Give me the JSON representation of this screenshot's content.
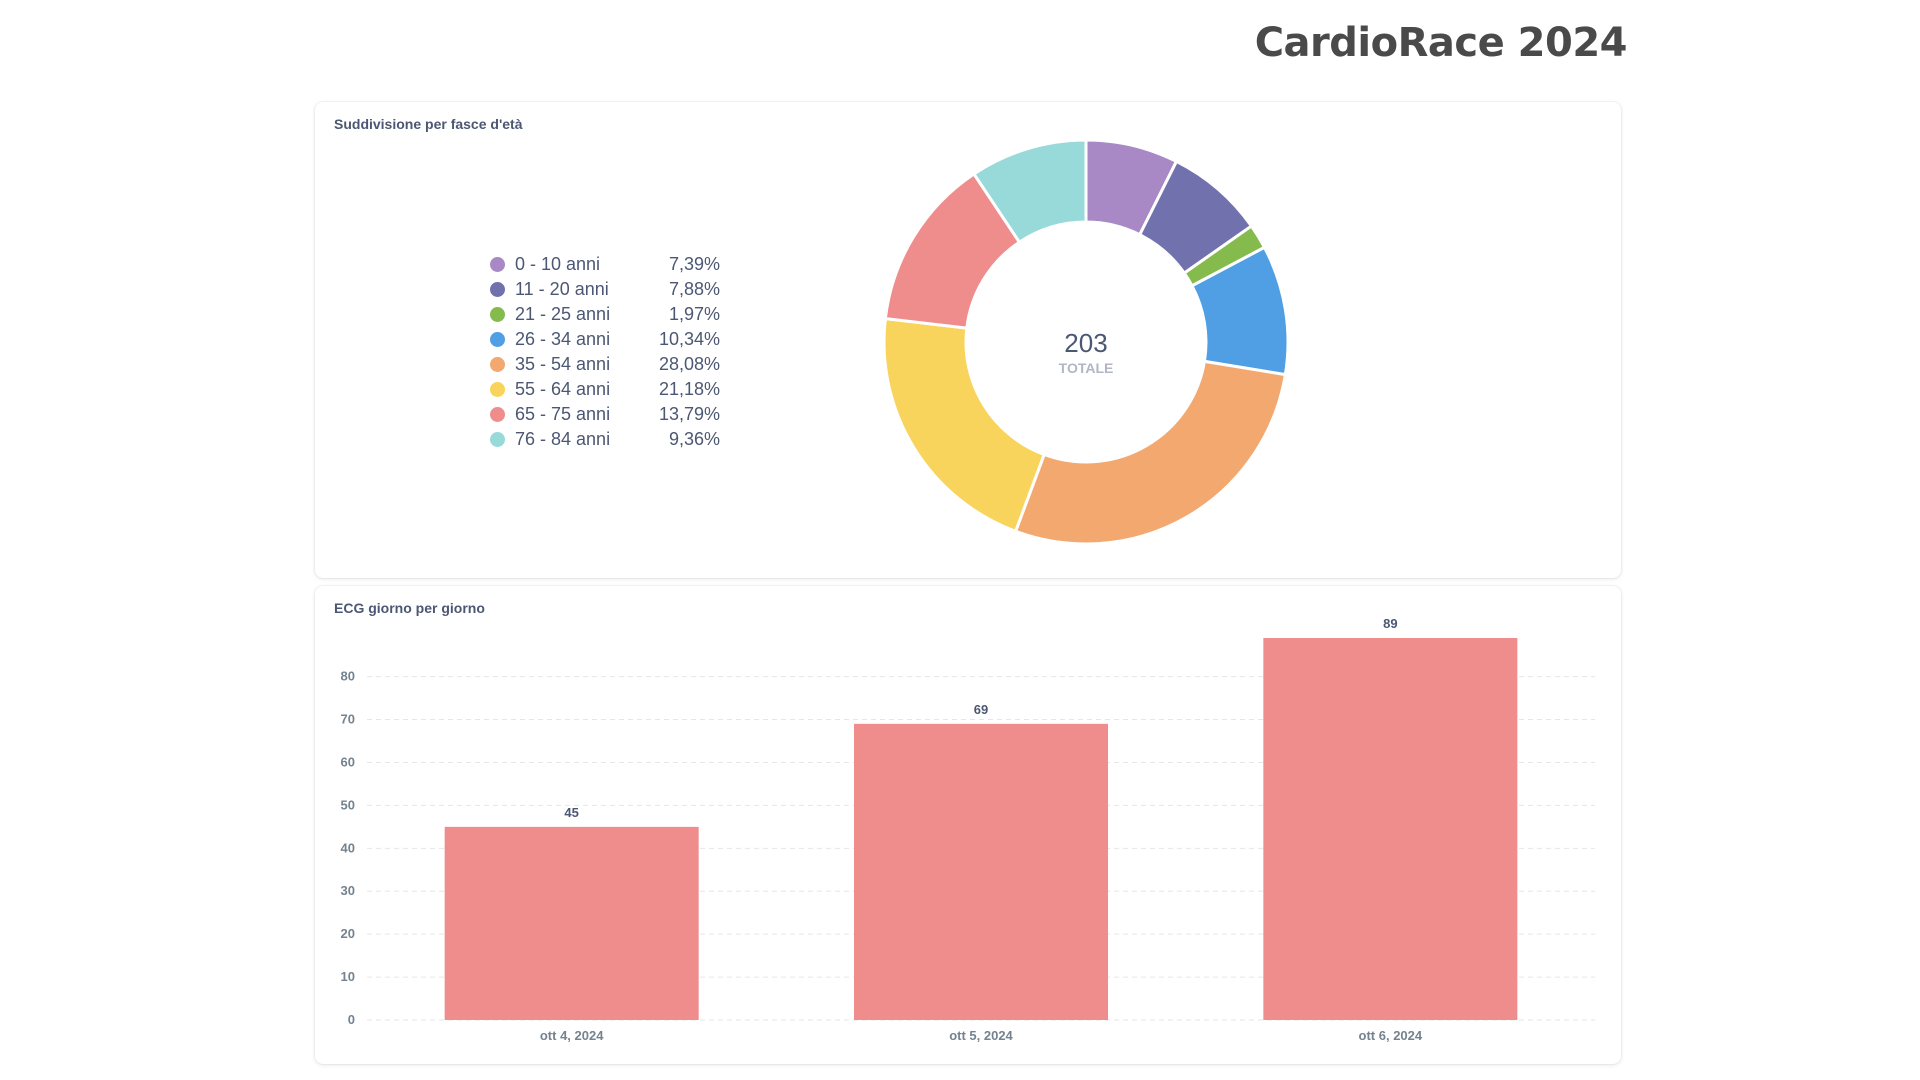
{
  "header": {
    "title": "CardioRace 2024"
  },
  "age_card": {
    "title": "Suddivisione per fasce d'età",
    "center_value": "203",
    "center_label": "TOTALE",
    "legend": [
      {
        "label": "0 - 10 anni",
        "pct": "7,39%",
        "color": "#a989c5"
      },
      {
        "label": "11 - 20 anni",
        "pct": "7,88%",
        "color": "#7172ad"
      },
      {
        "label": "21 - 25 anni",
        "pct": "1,97%",
        "color": "#84bb4c"
      },
      {
        "label": "26 - 34 anni",
        "pct": "10,34%",
        "color": "#509ee3"
      },
      {
        "label": "35 - 54 anni",
        "pct": "28,08%",
        "color": "#f2a86f"
      },
      {
        "label": "55 - 64 anni",
        "pct": "21,18%",
        "color": "#f9d45c"
      },
      {
        "label": "65 - 75 anni",
        "pct": "13,79%",
        "color": "#ef8c8c"
      },
      {
        "label": "76 - 84 anni",
        "pct": "9,36%",
        "color": "#98d9d9"
      }
    ]
  },
  "ecg_card": {
    "title": "ECG giorno per giorno"
  },
  "chart_data": [
    {
      "type": "pie",
      "title": "Suddivisione per fasce d'età",
      "total": 203,
      "categories": [
        "0 - 10 anni",
        "11 - 20 anni",
        "21 - 25 anni",
        "26 - 34 anni",
        "35 - 54 anni",
        "55 - 64 anni",
        "65 - 75 anni",
        "76 - 84 anni"
      ],
      "values": [
        7.39,
        7.88,
        1.97,
        10.34,
        28.08,
        21.18,
        13.79,
        9.36
      ],
      "colors": [
        "#a989c5",
        "#7172ad",
        "#84bb4c",
        "#509ee3",
        "#f2a86f",
        "#f9d45c",
        "#ef8c8c",
        "#98d9d9"
      ],
      "legend": "left"
    },
    {
      "type": "bar",
      "title": "ECG giorno per giorno",
      "categories": [
        "ott 4, 2024",
        "ott 5, 2024",
        "ott 6, 2024"
      ],
      "values": [
        45,
        69,
        89
      ],
      "yticks": [
        "0",
        "10",
        "20",
        "30",
        "40",
        "50",
        "60",
        "70",
        "80"
      ],
      "ylim": [
        0,
        89
      ],
      "grid": true,
      "color": "#ef8c8c"
    }
  ]
}
